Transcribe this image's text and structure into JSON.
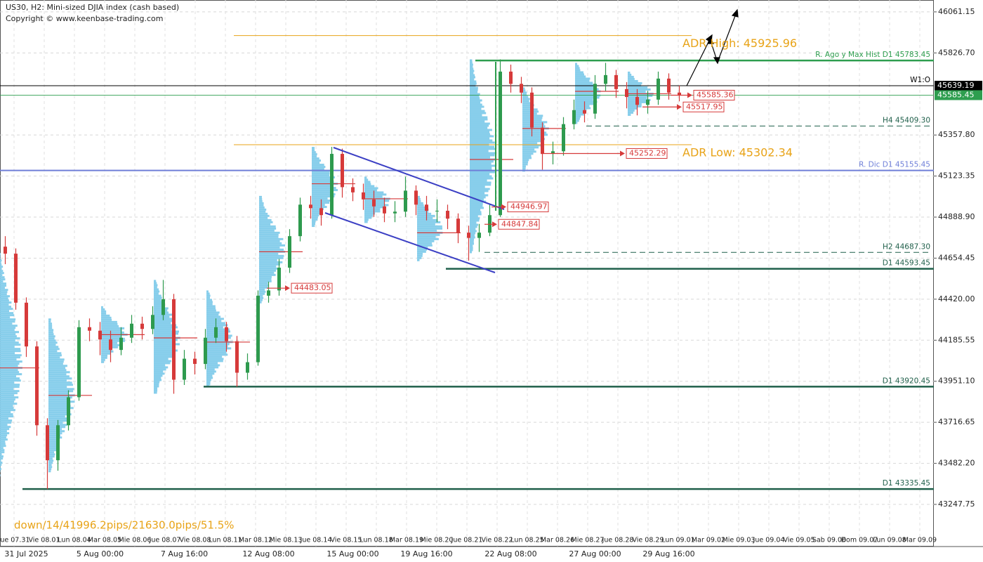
{
  "chart_data": {
    "type": "candlestick",
    "title": "US30, H2:  Mini-sized DJIA index (cash based)",
    "subtitle": "Copyright © www.keenbase-trading.com",
    "annotation": "down/14/41996.2pips/21630.0pips/51.5%",
    "categories": [
      null,
      null,
      "31 Jul 2025",
      null,
      null,
      null,
      null,
      null,
      null,
      "5 Aug 00:00",
      null,
      null,
      null,
      null,
      null,
      null,
      null,
      "7 Aug 16:00",
      null,
      null,
      null,
      null,
      null,
      null,
      null,
      "12 Aug 08:00",
      null,
      null,
      null,
      null,
      null,
      null,
      null,
      "15 Aug 00:00",
      null,
      null,
      null,
      null,
      null,
      null,
      "19 Aug 16:00",
      null,
      null,
      null,
      null,
      null,
      null,
      null,
      "22 Aug 08:00",
      null,
      null,
      null,
      null,
      null,
      null,
      null,
      "27 Aug 00:00",
      null,
      null,
      null,
      null,
      null,
      null,
      "29 Aug 16:00",
      null
    ],
    "day_labels": [
      "Jue 07.31",
      "Vie 08.01",
      "Lun 08.04",
      "Mar 08.05",
      "Mie 08.06",
      "Jue 08.07",
      "Vie 08.08",
      "Lun 08.11",
      "Mar 08.12",
      "Mie 08.13",
      "Jue 08.14",
      "Vie 08.15",
      "Lun 08.18",
      "Mar 08.19",
      "Mie 08.20",
      "Jue 08.21",
      "Vie 08.22",
      "Lun 08.25",
      "Mar 08.26",
      "Mie 08.27",
      "Jue 08.28",
      "Vie 08.29",
      "Lun 09.01",
      "Mar 09.02",
      "Mie 09.03",
      "Jue 09.04",
      "Vie 09.05",
      "Sab 09.06",
      "Dom 09.07",
      "Lun 09.08",
      "Mar 09.09"
    ],
    "open": [
      44720,
      44680,
      44400,
      44150,
      43700,
      43500,
      43700,
      43860,
      44260,
      44240,
      44190,
      44130,
      44200,
      44280,
      44250,
      44330,
      44420,
      43960,
      44080,
      44050,
      44200,
      44260,
      44180,
      44000,
      44060,
      44440,
      44470,
      44600,
      44780,
      44960,
      44940,
      44900,
      45250,
      45060,
      45030,
      44990,
      44950,
      44910,
      44920,
      45040,
      44960,
      44925,
      44925,
      44880,
      44800,
      44770,
      44800,
      44900,
      45720,
      45650,
      45600,
      45400,
      45250,
      45265,
      45420,
      45500,
      45480,
      45650,
      45700,
      45620,
      45575,
      45530,
      45560,
      45680,
      45600
    ],
    "high": [
      44780,
      44710,
      44430,
      44180,
      43740,
      43730,
      43900,
      44300,
      44310,
      44290,
      44240,
      44260,
      44330,
      44320,
      44380,
      44530,
      44450,
      44130,
      44120,
      44250,
      44310,
      44290,
      44210,
      44110,
      44470,
      44520,
      44650,
      44820,
      45000,
      45010,
      44990,
      45290,
      45280,
      45110,
      45080,
      45040,
      45000,
      44980,
      45120,
      45070,
      45010,
      44990,
      44960,
      44910,
      44840,
      44850,
      44960,
      45790,
      45760,
      45690,
      45630,
      45430,
      45320,
      45460,
      45560,
      45550,
      45700,
      45770,
      45730,
      45660,
      45620,
      45610,
      45720,
      45710,
      45640
    ],
    "low": [
      44620,
      44360,
      44090,
      43640,
      43335,
      43440,
      43670,
      43840,
      44180,
      44100,
      44060,
      44100,
      44170,
      44190,
      44220,
      44300,
      43880,
      43930,
      43990,
      44020,
      44170,
      44120,
      43920,
      43960,
      44040,
      44400,
      44440,
      44570,
      44750,
      44880,
      44840,
      44880,
      45000,
      44980,
      44930,
      44890,
      44860,
      44860,
      44890,
      44900,
      44870,
      44860,
      44820,
      44740,
      44640,
      44690,
      44780,
      44890,
      45600,
      45540,
      45350,
      45160,
      45190,
      45240,
      45390,
      45430,
      45450,
      45610,
      45570,
      45510,
      45470,
      45480,
      45530,
      45560,
      45550
    ],
    "close": [
      44680,
      44400,
      44150,
      43700,
      43500,
      43700,
      43860,
      44260,
      44240,
      44190,
      44130,
      44200,
      44280,
      44250,
      44330,
      44420,
      43960,
      44080,
      44050,
      44200,
      44260,
      44180,
      44000,
      44060,
      44440,
      44470,
      44600,
      44780,
      44960,
      44940,
      44900,
      45250,
      45060,
      45030,
      44990,
      44950,
      44910,
      44920,
      45040,
      44960,
      44925,
      44925,
      44880,
      44800,
      44770,
      44800,
      44900,
      45720,
      45650,
      45600,
      45400,
      45250,
      45265,
      45420,
      45500,
      45480,
      45650,
      45700,
      45620,
      45575,
      45530,
      45560,
      45680,
      45600,
      45585
    ],
    "up_color": "#2e9a4e",
    "down_color": "#d63a3a",
    "profile_color": "#87ceeb",
    "ylim": [
      43007,
      46129
    ],
    "yticks": [
      46061.15,
      {
        "value": 45826.7,
        "label": "45826.70"
      },
      {
        "value": 45357.8,
        "label": "45357.80"
      },
      45123.35,
      {
        "value": 44888.9,
        "label": "44888.90"
      },
      44654.45,
      {
        "value": 44420,
        "label": "44420.00"
      },
      44185.55,
      {
        "value": 43951.1,
        "label": "43951.10"
      },
      43716.65,
      {
        "value": 43482.2,
        "label": "43482.20"
      },
      43247.75
    ],
    "grid": true,
    "levels": [
      {
        "label": "R. Ago y Max Hist D1 45783.45",
        "value": 45783.45,
        "color": "#2e9e4f"
      },
      {
        "label": "W1:O",
        "value": 45639.19,
        "color": "#000000"
      },
      {
        "label": "H4 45409.30",
        "value": 45409.3,
        "color": "#1f5f4a",
        "dashed": true
      },
      {
        "label": "R. Dic D1 45155.45",
        "value": 45155.45,
        "color": "#6f7fd8"
      },
      {
        "label": "H2 44687.30",
        "value": 44687.3,
        "color": "#1f5f4a",
        "dashed": true
      },
      {
        "label": "D1 44593.45",
        "value": 44593.45,
        "color": "#1f5f4a"
      },
      {
        "label": "D1 43920.45",
        "value": 43920.45,
        "color": "#1f5f4a"
      },
      {
        "label": "D1 43335.45",
        "value": 43335.45,
        "color": "#1f5f4a"
      },
      {
        "label": "ADR High: 45925.96",
        "value": 45925.96,
        "color": "#e8a317"
      },
      {
        "label": "ADR Low: 45302.34",
        "value": 45302.34,
        "color": "#e8a317"
      }
    ],
    "price_tags": [
      {
        "value": 45639.19,
        "color": "#000000"
      },
      {
        "value": 45585.45,
        "color": "#2e9e4f"
      }
    ],
    "price_marks": [
      45585.36,
      45517.95,
      45252.29,
      44946.97,
      44847.84,
      44483.05
    ],
    "mark_color": "#d63a3a"
  }
}
